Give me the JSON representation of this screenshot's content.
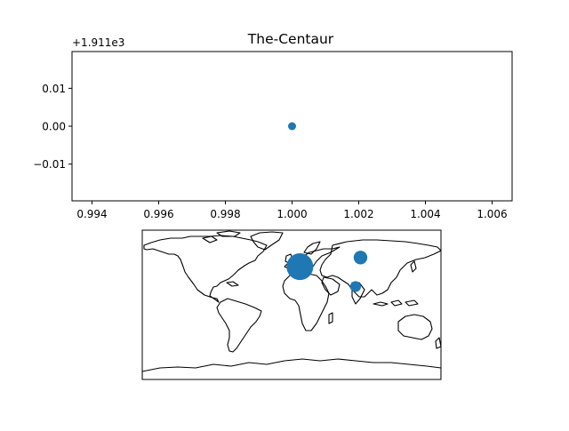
{
  "chart_data": [
    {
      "type": "scatter",
      "title": "The-Centaur",
      "xlabel": "",
      "ylabel": "",
      "y_offset_label": "+1.911e3",
      "xlim": [
        0.9934,
        1.0066
      ],
      "ylim": [
        -0.0197,
        0.0197
      ],
      "x_ticks": [
        0.994,
        0.996,
        0.998,
        1.0,
        1.002,
        1.004,
        1.006
      ],
      "x_tick_labels": [
        "0.994",
        "0.996",
        "0.998",
        "1.000",
        "1.002",
        "1.004",
        "1.006"
      ],
      "y_ticks": [
        0.01,
        0.0,
        -0.01
      ],
      "y_tick_labels": [
        "0.01",
        "0.00",
        "−0.01"
      ],
      "series": [
        {
          "x": [
            1.0
          ],
          "y": [
            0.0
          ],
          "color": "#1f77b4"
        }
      ],
      "grid": false,
      "legend": "none"
    },
    {
      "type": "scatter",
      "title": "",
      "map": "world coastlines",
      "xlim": [
        -180,
        180
      ],
      "ylim": [
        -90,
        90
      ],
      "color": "#1f77b4",
      "points": [
        {
          "lon": 10,
          "lat": 46,
          "size": 420
        },
        {
          "lon": 83,
          "lat": 57,
          "size": 110
        },
        {
          "lon": 77,
          "lat": 22,
          "size": 70
        }
      ],
      "grid": false,
      "legend": "none"
    }
  ]
}
